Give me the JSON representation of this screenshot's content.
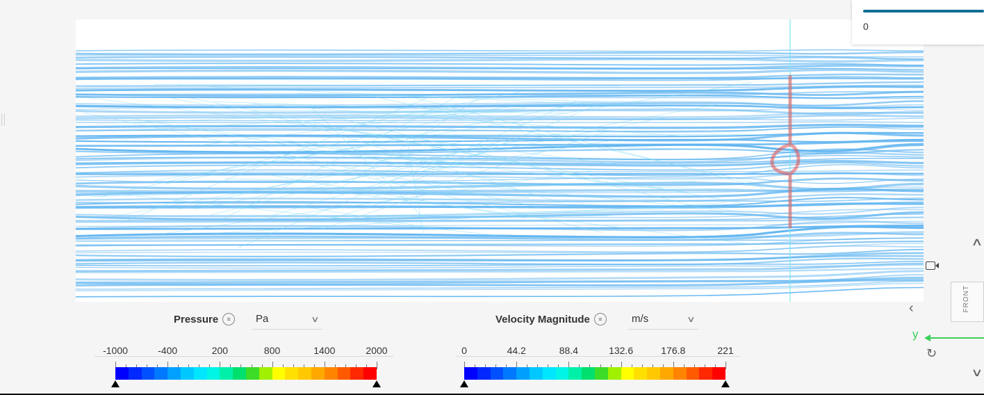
{
  "top_panel": {
    "slider_value": "0",
    "slider_fraction": 1.0
  },
  "legends": [
    {
      "id": "pressure",
      "label": "Pressure",
      "unit": "Pa",
      "ticks": [
        "-1000",
        "-400",
        "200",
        "800",
        "1400",
        "2000"
      ],
      "menu_icon": "menu-circle-icon",
      "dropdown_icon": "chevron-down-icon"
    },
    {
      "id": "velocity",
      "label": "Velocity Magnitude",
      "unit": "m/s",
      "ticks": [
        "0",
        "44.2",
        "88.4",
        "132.6",
        "176.8",
        "221"
      ],
      "menu_icon": "menu-circle-icon",
      "dropdown_icon": "chevron-down-icon"
    }
  ],
  "colormap": [
    "#0000ff",
    "#0028ff",
    "#0050ff",
    "#0078ff",
    "#00a0ff",
    "#00c8ff",
    "#00e6ff",
    "#00f5e6",
    "#00f0aa",
    "#00e06e",
    "#3cdc28",
    "#a0f000",
    "#ffff00",
    "#ffe000",
    "#ffc800",
    "#ffa800",
    "#ff8400",
    "#ff5a00",
    "#ff2800",
    "#ff0000"
  ],
  "side_controls": {
    "collapse_up_icon": "chevron-up-icon",
    "collapse_left_icon": "chevron-left-icon",
    "camera_icon": "video-camera-icon",
    "front_label": "FRONT",
    "axis_label": "y",
    "reset_icon": "rotate-reset-icon",
    "collapse_down_icon": "chevron-down-icon"
  },
  "scene": {
    "streamline_color": "#5fb4f0",
    "object_color": "#e05050",
    "plane_color": "#7fe6f0"
  }
}
